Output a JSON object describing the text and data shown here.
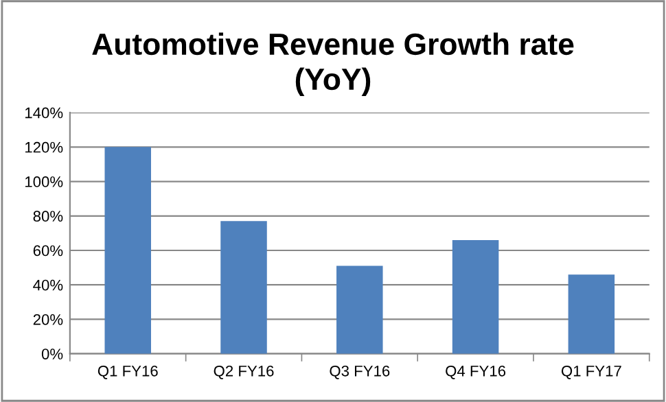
{
  "chart_data": {
    "type": "bar",
    "title": "Automotive Revenue Growth rate\n(YoY)",
    "categories": [
      "Q1 FY16",
      "Q2 FY16",
      "Q3 FY16",
      "Q4 FY16",
      "Q1 FY17"
    ],
    "values": [
      120,
      77,
      51,
      66,
      46
    ],
    "color": "#4f81bd",
    "ylim": [
      0,
      140
    ],
    "yticks": [
      {
        "value": 0,
        "label": "0%"
      },
      {
        "value": 20,
        "label": "20%"
      },
      {
        "value": 40,
        "label": "40%"
      },
      {
        "value": 60,
        "label": "60%"
      },
      {
        "value": 80,
        "label": "80%"
      },
      {
        "value": 100,
        "label": "100%"
      },
      {
        "value": 120,
        "label": "120%"
      },
      {
        "value": 140,
        "label": "140%"
      }
    ],
    "grid": "y",
    "legend": false
  }
}
